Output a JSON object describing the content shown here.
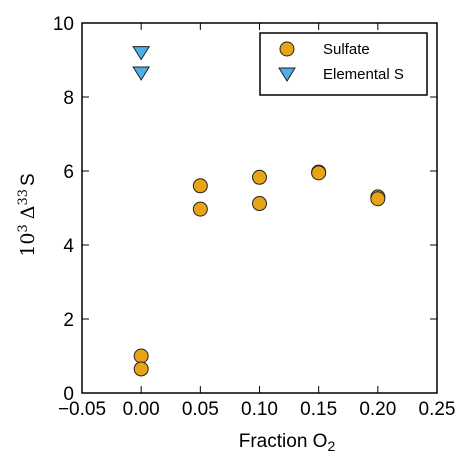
{
  "chart_data": {
    "type": "scatter",
    "xlabel": {
      "main": "Fraction O",
      "sub": "2"
    },
    "ylabel": {
      "base": "10",
      "exp": "3",
      "mid": "Δ",
      "iso": "33",
      "tail": "S"
    },
    "xlim": [
      -0.05,
      0.25
    ],
    "ylim": [
      0,
      10
    ],
    "xticks": [
      -0.05,
      0.0,
      0.05,
      0.1,
      0.15,
      0.2,
      0.25
    ],
    "xtick_labels": [
      "−0.05",
      "0.00",
      "0.05",
      "0.10",
      "0.15",
      "0.20",
      "0.25"
    ],
    "yticks": [
      0,
      2,
      4,
      6,
      8,
      10
    ],
    "ytick_labels": [
      "0",
      "2",
      "4",
      "6",
      "8",
      "10"
    ],
    "grid": false,
    "legend_position": "top-right",
    "series": [
      {
        "name": "Sulfate",
        "marker": "circle",
        "color": "#E8A317",
        "points": [
          {
            "x": 0.0,
            "y": 1.0
          },
          {
            "x": 0.0,
            "y": 0.65
          },
          {
            "x": 0.05,
            "y": 5.6
          },
          {
            "x": 0.05,
            "y": 4.97
          },
          {
            "x": 0.1,
            "y": 5.83
          },
          {
            "x": 0.1,
            "y": 5.12
          },
          {
            "x": 0.15,
            "y": 5.97
          },
          {
            "x": 0.15,
            "y": 5.95
          },
          {
            "x": 0.2,
            "y": 5.3
          },
          {
            "x": 0.2,
            "y": 5.25
          }
        ]
      },
      {
        "name": "Elemental S",
        "marker": "triangle-down",
        "color": "#4FAEE3",
        "points": [
          {
            "x": 0.0,
            "y": 9.2
          },
          {
            "x": 0.0,
            "y": 8.65
          }
        ]
      }
    ]
  }
}
